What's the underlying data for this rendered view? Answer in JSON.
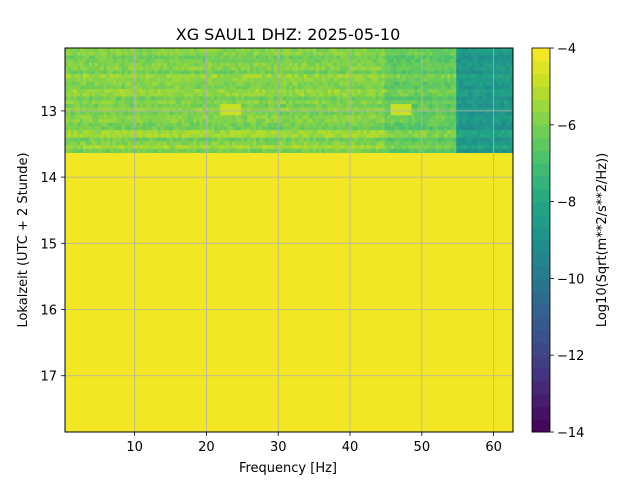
{
  "chart_data": {
    "type": "heatmap",
    "title": "XG SAUL1  DHZ: 2025-05-10",
    "xlabel": "Frequency [Hz]",
    "ylabel": "Lokalzeit (UTC + 2 Stunde)",
    "xlim": [
      0.3,
      62.7
    ],
    "ylim": [
      12.05,
      17.85
    ],
    "x_ticks": [
      10,
      20,
      30,
      40,
      50,
      60
    ],
    "y_ticks": [
      13,
      14,
      15,
      16,
      17
    ],
    "grid": true,
    "colorbar": {
      "label": "Log10(Sqrt(m**2/s**2/Hz))",
      "min": -14,
      "max": -4,
      "ticks": [
        -4,
        -6,
        -8,
        -10,
        -12,
        -14
      ],
      "colormap": "viridis",
      "levels": 30
    },
    "data_extent": {
      "time_start": 12.05,
      "time_end": 13.63,
      "value_beyond_data": -4.0
    },
    "spectral_features": [
      {
        "frequency_range": [
          0.3,
          45
        ],
        "level": -5.8
      },
      {
        "frequency_range": [
          45,
          55
        ],
        "level": -6.3
      },
      {
        "frequency_range": [
          55,
          62.7
        ],
        "level": -8.5
      },
      {
        "frequency": 23.5,
        "time": 13.0,
        "level": -4.8
      },
      {
        "frequency": 47,
        "time": 13.0,
        "level": -4.7
      }
    ]
  }
}
